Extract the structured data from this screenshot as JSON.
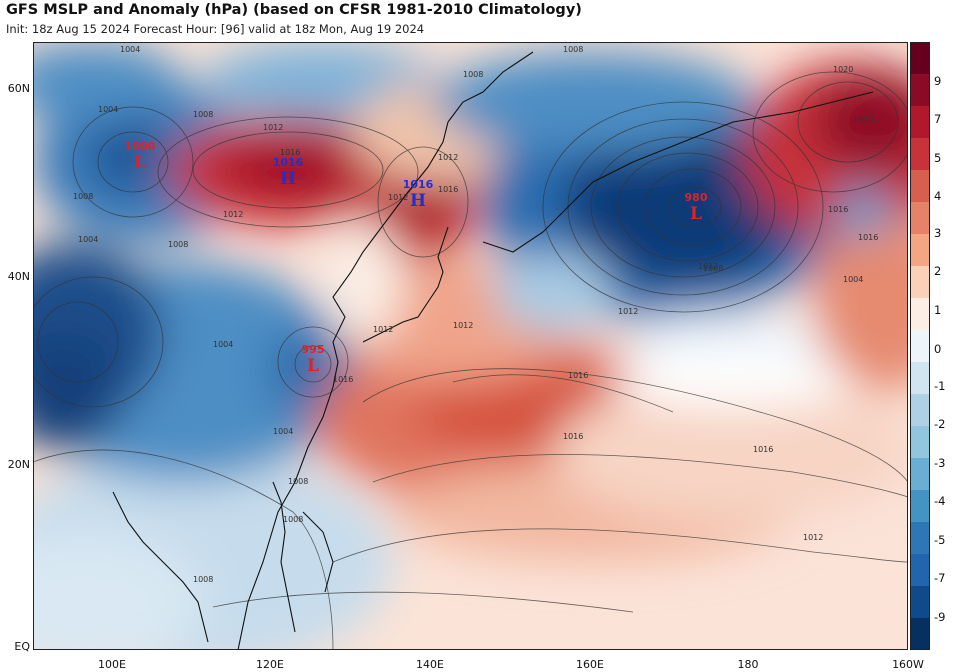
{
  "title": "GFS MSLP and Anomaly (hPa) (based on CFSR 1981-2010 Climatology)",
  "subtitle": "Init: 18z Aug 15 2024   Forecast Hour: [96]   valid at 18z Mon, Aug 19 2024",
  "axes": {
    "lat_labels": [
      "60N",
      "40N",
      "20N",
      "EQ"
    ],
    "lon_labels": [
      "100E",
      "120E",
      "140E",
      "160E",
      "180",
      "160W"
    ]
  },
  "colorbar": {
    "ticks": [
      "9",
      "7",
      "5",
      "4",
      "3",
      "2",
      "1",
      "0",
      "-1",
      "-2",
      "-3",
      "-4",
      "-5",
      "-7",
      "-9"
    ],
    "colors": [
      "#67001f",
      "#8b0a26",
      "#b2182b",
      "#c8333a",
      "#d6604d",
      "#e58267",
      "#f4a582",
      "#fbd0b9",
      "#fdeee5",
      "#eef5fa",
      "#d1e5f0",
      "#afd1e6",
      "#92c5de",
      "#6aaed3",
      "#4393c3",
      "#2d78b4",
      "#2166ac",
      "#0f4a8a",
      "#053061"
    ]
  },
  "pressure_centers": [
    {
      "type": "L",
      "value": "1000",
      "color": "#e0202a"
    },
    {
      "type": "H",
      "value": "1016",
      "color": "#2030d0"
    },
    {
      "type": "H",
      "value": "1016",
      "color": "#2030d0"
    },
    {
      "type": "L",
      "value": "995",
      "color": "#e0202a"
    },
    {
      "type": "L",
      "value": "980",
      "color": "#e0202a"
    }
  ],
  "contour_labels": [
    "1004",
    "1008",
    "1008",
    "1004",
    "1008",
    "1012",
    "1016",
    "1012",
    "1008",
    "1012",
    "1016",
    "1012",
    "1012",
    "1016",
    "1020",
    "1016",
    "1012",
    "1012",
    "1016",
    "1016",
    "1016",
    "1012",
    "1012",
    "1008",
    "1004",
    "1008",
    "1008",
    "1004",
    "1004",
    "1016",
    "1008",
    "1020",
    "1004",
    "1008"
  ],
  "colors": {
    "positive_anomaly": "#d6604d",
    "negative_anomaly": "#2166ac",
    "neutral": "#ffffff"
  }
}
